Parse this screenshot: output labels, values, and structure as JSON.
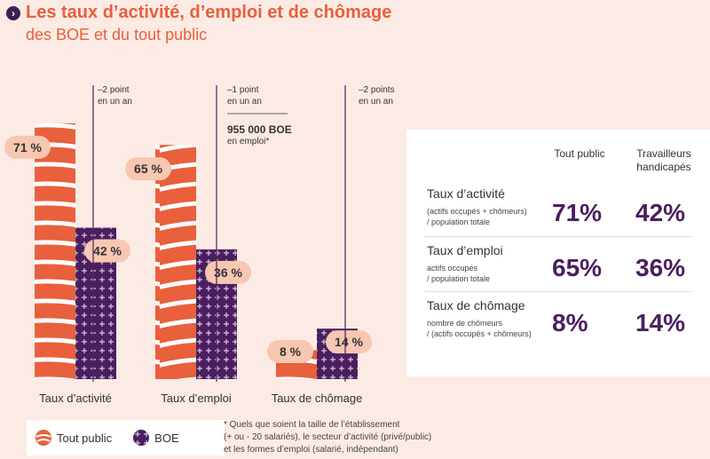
{
  "header": {
    "title": "Les taux d’activité, d’emploi et de chômage",
    "subtitle": "des BOE et du tout public"
  },
  "colors": {
    "tout_public": "#e8603c",
    "boe": "#4b1f5e",
    "pill": "#f8c7b1",
    "title": "#e8603c"
  },
  "chart_data": {
    "type": "bar",
    "categories": [
      "Taux d’activité",
      "Taux d’emploi",
      "Taux de chômage"
    ],
    "series": [
      {
        "name": "Tout public",
        "values": [
          71,
          65,
          8
        ],
        "labels": [
          "71 %",
          "65 %",
          "8 %"
        ]
      },
      {
        "name": "BOE",
        "values": [
          42,
          36,
          14
        ],
        "labels": [
          "42 %",
          "36 %",
          "14 %"
        ]
      }
    ],
    "ylim": [
      0,
      85
    ],
    "annotations": [
      {
        "line1": "–2 point",
        "line2": "en un an"
      },
      {
        "line1": "–1 point",
        "line2": "en un an"
      },
      {
        "line1": "–2 points",
        "line2": "en un an"
      }
    ],
    "callout": {
      "value": "955 000 BOE",
      "text": "en emploi*"
    },
    "legend": [
      "Tout public",
      "BOE"
    ]
  },
  "table": {
    "headers": [
      "Tout public",
      "Travailleurs\nhandicapés"
    ],
    "rows": [
      {
        "name": "Taux d’activité",
        "desc1": "(actifs occupés + chômeurs)",
        "desc2": "/ population totale",
        "tout_public": "71%",
        "boe": "42%"
      },
      {
        "name": "Taux d’emploi",
        "desc1": "actifs occupés",
        "desc2": "/ population totale",
        "tout_public": "65%",
        "boe": "36%"
      },
      {
        "name": "Taux de chômage",
        "desc1": "nombre de chômeurs",
        "desc2": "/ (actifs occupés + chômeurs)",
        "tout_public": "8%",
        "boe": "14%"
      }
    ]
  },
  "footnote": {
    "line1": "* Quels que soient la taille de l’établissement",
    "line2": "(+ ou - 20 salariés), le secteur d’activité (privé/public)",
    "line3": "et les formes d’emploi (salarié, indépendant)"
  }
}
